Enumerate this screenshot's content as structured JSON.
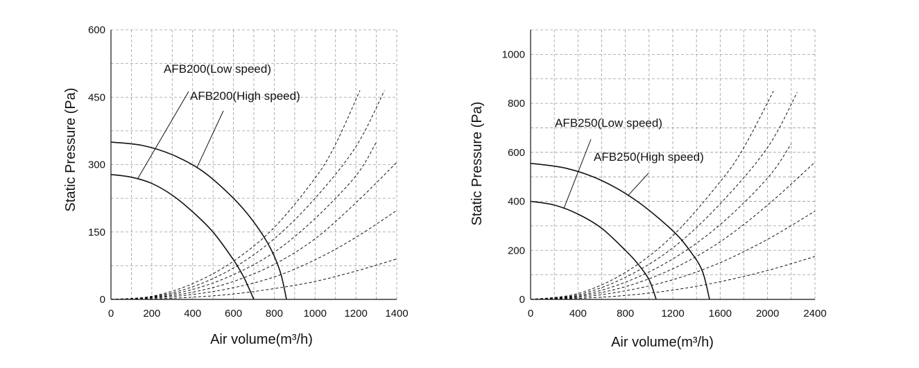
{
  "chart_data": [
    {
      "type": "line",
      "title": "",
      "xlabel": "Air volume(m³/h)",
      "ylabel": "Static Pressure (Pa)",
      "xlim": [
        0,
        1400
      ],
      "ylim": [
        0,
        600
      ],
      "x_ticks": [
        "0",
        "200",
        "400",
        "600",
        "800",
        "1000",
        "1200",
        "1400"
      ],
      "y_ticks": [
        "0",
        "150",
        "300",
        "450",
        "600"
      ],
      "grid": true,
      "fan_curves": [
        {
          "name": "AFB200(Low speed)",
          "x": [
            0,
            100,
            200,
            300,
            400,
            500,
            600,
            650,
            700
          ],
          "y": [
            278,
            272,
            258,
            232,
            195,
            150,
            88,
            50,
            0
          ]
        },
        {
          "name": "AFB200(High speed)",
          "x": [
            0,
            150,
            300,
            450,
            600,
            700,
            780,
            830,
            860
          ],
          "y": [
            350,
            343,
            322,
            285,
            225,
            172,
            115,
            60,
            0
          ]
        }
      ],
      "system_curves": [
        {
          "x": [
            0,
            200,
            400,
            600,
            800,
            1000,
            1100,
            1220
          ],
          "y": [
            0,
            7,
            35,
            85,
            160,
            270,
            345,
            465
          ]
        },
        {
          "x": [
            0,
            200,
            400,
            600,
            800,
            1000,
            1200,
            1340
          ],
          "y": [
            0,
            6,
            28,
            70,
            135,
            225,
            340,
            465
          ]
        },
        {
          "x": [
            0,
            200,
            400,
            600,
            800,
            1000,
            1200,
            1300
          ],
          "y": [
            0,
            5,
            22,
            55,
            105,
            180,
            275,
            350
          ]
        },
        {
          "x": [
            0,
            200,
            400,
            600,
            800,
            1000,
            1200,
            1400
          ],
          "y": [
            0,
            4,
            16,
            40,
            78,
            135,
            215,
            305
          ]
        },
        {
          "x": [
            0,
            200,
            400,
            600,
            800,
            1000,
            1200,
            1400
          ],
          "y": [
            0,
            3,
            11,
            26,
            50,
            88,
            138,
            198
          ]
        },
        {
          "x": [
            0,
            200,
            400,
            600,
            800,
            1000,
            1200,
            1400
          ],
          "y": [
            0,
            1,
            5,
            12,
            24,
            40,
            63,
            90
          ]
        }
      ]
    },
    {
      "type": "line",
      "title": "",
      "xlabel": "Air volume(m³/h)",
      "ylabel": "Static Pressure (Pa)",
      "xlim": [
        0,
        2400
      ],
      "ylim": [
        0,
        1100
      ],
      "x_ticks": [
        "0",
        "400",
        "800",
        "1200",
        "1600",
        "2000",
        "2400"
      ],
      "y_ticks": [
        "0",
        "200",
        "400",
        "600",
        "800",
        "1000"
      ],
      "grid": true,
      "fan_curves": [
        {
          "name": "AFB250(Low speed)",
          "x": [
            0,
            200,
            400,
            600,
            800,
            900,
            1000,
            1060
          ],
          "y": [
            400,
            385,
            348,
            290,
            200,
            148,
            80,
            0
          ]
        },
        {
          "name": "AFB250(High speed)",
          "x": [
            0,
            300,
            600,
            900,
            1200,
            1350,
            1450,
            1510
          ],
          "y": [
            555,
            535,
            485,
            400,
            280,
            195,
            115,
            0
          ]
        }
      ],
      "system_curves": [
        {
          "x": [
            0,
            400,
            800,
            1200,
            1600,
            1800,
            2050
          ],
          "y": [
            0,
            24,
            110,
            260,
            480,
            620,
            850
          ]
        },
        {
          "x": [
            0,
            400,
            800,
            1200,
            1600,
            2000,
            2250
          ],
          "y": [
            0,
            19,
            90,
            210,
            390,
            620,
            845
          ]
        },
        {
          "x": [
            0,
            400,
            800,
            1200,
            1600,
            2000,
            2200
          ],
          "y": [
            0,
            15,
            70,
            165,
            305,
            495,
            635
          ]
        },
        {
          "x": [
            0,
            400,
            800,
            1200,
            1600,
            2000,
            2400
          ],
          "y": [
            0,
            12,
            52,
            125,
            235,
            385,
            560
          ]
        },
        {
          "x": [
            0,
            400,
            800,
            1200,
            1600,
            2000,
            2400
          ],
          "y": [
            0,
            8,
            35,
            80,
            150,
            245,
            360
          ]
        },
        {
          "x": [
            0,
            400,
            800,
            1200,
            1600,
            2000,
            2400
          ],
          "y": [
            0,
            4,
            16,
            38,
            72,
            118,
            175
          ]
        }
      ]
    }
  ]
}
